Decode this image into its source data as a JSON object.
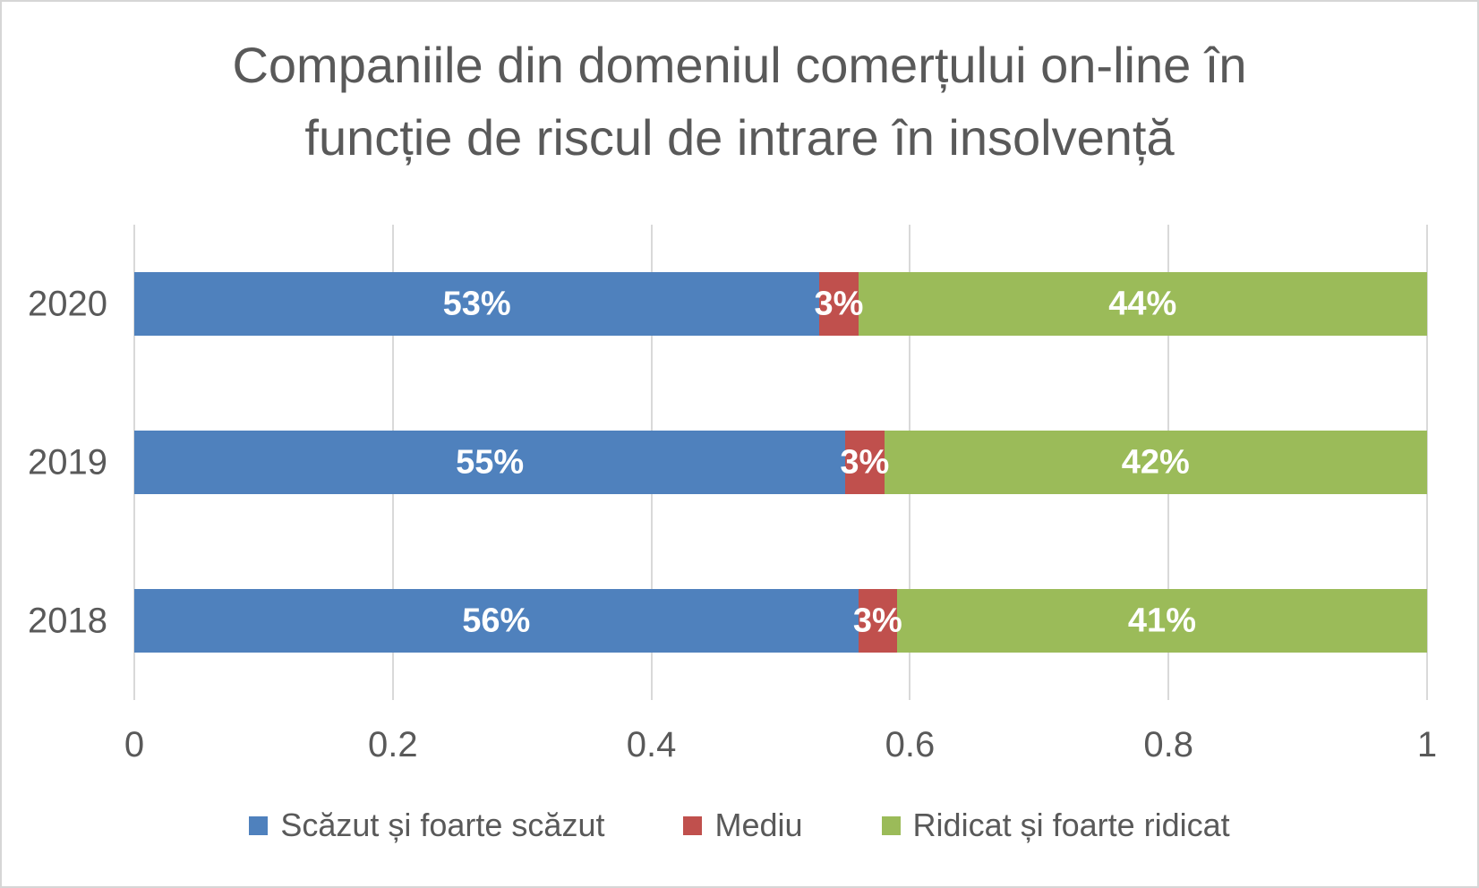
{
  "frame": {
    "background_color": "#FFFFFF",
    "border_color": "#D6D6D6"
  },
  "header": {
    "title_lines": [
      "Companiile din domeniul comerțului on-line în",
      "funcție de riscul de intrare în insolvență"
    ],
    "title_color": "#595959"
  },
  "chart_data": {
    "type": "bar",
    "orientation": "horizontal",
    "stacked": true,
    "stacked_total": 1.0,
    "title": "Companiile din domeniul comerțului on-line în funcție de riscul de intrare în insolvență",
    "categories": [
      "2020",
      "2019",
      "2018"
    ],
    "series": [
      {
        "name": "Scăzut și foarte scăzut",
        "color": "#4F81BD",
        "values": [
          0.53,
          0.55,
          0.56
        ]
      },
      {
        "name": "Mediu",
        "color": "#C0504D",
        "values": [
          0.03,
          0.03,
          0.03
        ]
      },
      {
        "name": "Ridicat și foarte ridicat",
        "color": "#9BBB59",
        "values": [
          0.44,
          0.42,
          0.41
        ]
      }
    ],
    "data_labels": [
      [
        "53%",
        "3%",
        "44%"
      ],
      [
        "55%",
        "3%",
        "42%"
      ],
      [
        "56%",
        "3%",
        "41%"
      ]
    ],
    "data_label_color": "#FFFFFF",
    "xlabel": "",
    "ylabel": "",
    "xlim": [
      0,
      1
    ],
    "xticks": [
      {
        "label": "0",
        "value": 0
      },
      {
        "label": "0.2",
        "value": 0.2
      },
      {
        "label": "0.4",
        "value": 0.4
      },
      {
        "label": "0.6",
        "value": 0.6
      },
      {
        "label": "0.8",
        "value": 0.8
      },
      {
        "label": "1",
        "value": 1
      }
    ],
    "grid": "vertical",
    "gridline_color": "#D9D9D9",
    "axis_text_color": "#595959",
    "legend_position": "bottom"
  }
}
